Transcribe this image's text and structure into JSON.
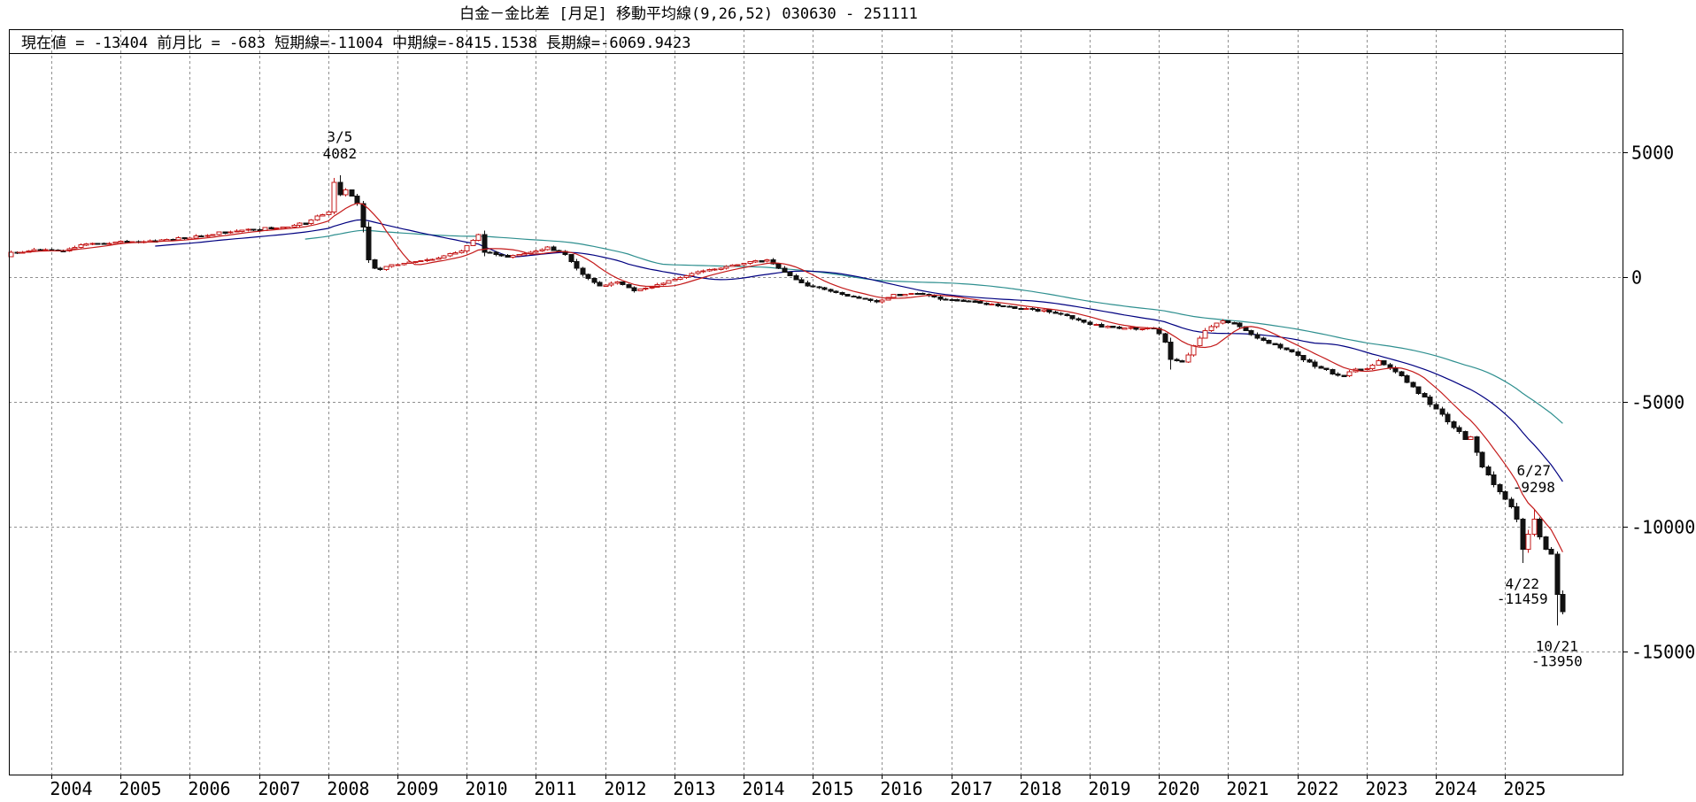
{
  "title": "白金－金比差 [月足]  移動平均線(9,26,52)  030630 - 251111",
  "info_bar": {
    "items": [
      {
        "label": "現在値",
        "sep": " = ",
        "value": "-13404"
      },
      {
        "label": "前月比",
        "sep": " = ",
        "value": "-683"
      },
      {
        "label": "短期線",
        "sep": "=",
        "value": "-11004"
      },
      {
        "label": "中期線",
        "sep": "=",
        "value": "-8415.1538"
      },
      {
        "label": "長期線",
        "sep": "=",
        "value": "-6069.9423"
      }
    ],
    "gap": "    "
  },
  "chart_data": {
    "type": "candlestick",
    "instrument": "白金－金比差",
    "timeframe": "月足",
    "period_shown": "030630 - 251111",
    "start_month": "2003-06",
    "end_month": "2025-11",
    "months_total": 270,
    "current_value": -13404,
    "prev_month_change": -683,
    "x_axis": {
      "year_labels": [
        2004,
        2005,
        2006,
        2007,
        2008,
        2009,
        2010,
        2011,
        2012,
        2013,
        2014,
        2015,
        2016,
        2017,
        2018,
        2019,
        2020,
        2021,
        2022,
        2023,
        2024,
        2025
      ]
    },
    "y_axis": {
      "tick_values": [
        5000,
        0,
        -5000,
        -10000,
        -15000
      ],
      "tick_labels": [
        "5000",
        "0",
        "-5000",
        "-10000",
        "-15000"
      ],
      "approx_range": [
        -19900,
        9900
      ],
      "grid": "dashed"
    },
    "moving_averages": [
      {
        "name": "短期線",
        "period": 9,
        "color": "#c41a1a",
        "last_value": -11004
      },
      {
        "name": "中期線",
        "period": 26,
        "color": "#000080",
        "last_value": -8415.1538
      },
      {
        "name": "長期線",
        "period": 52,
        "color": "#2e8f8f",
        "last_value": -6069.9423
      }
    ],
    "candle_up_color": "#c41a1a",
    "candle_up_fill": "#ffffff",
    "candle_down_color": "#111111",
    "grid_color": "#909090",
    "close_anchors": [
      [
        0,
        1000
      ],
      [
        3,
        1050
      ],
      [
        6,
        1100
      ],
      [
        9,
        1050
      ],
      [
        12,
        1300
      ],
      [
        15,
        1350
      ],
      [
        18,
        1400
      ],
      [
        21,
        1420
      ],
      [
        24,
        1450
      ],
      [
        27,
        1500
      ],
      [
        30,
        1550
      ],
      [
        33,
        1650
      ],
      [
        36,
        1800
      ],
      [
        39,
        1850
      ],
      [
        42,
        1900
      ],
      [
        45,
        1950
      ],
      [
        48,
        2000
      ],
      [
        51,
        2150
      ],
      [
        54,
        2500
      ],
      [
        55,
        2600
      ],
      [
        56,
        3800
      ],
      [
        57,
        3300
      ],
      [
        58,
        3500
      ],
      [
        59,
        3250
      ],
      [
        60,
        2950
      ],
      [
        61,
        2000
      ],
      [
        62,
        700
      ],
      [
        63,
        350
      ],
      [
        64,
        300
      ],
      [
        66,
        500
      ],
      [
        69,
        600
      ],
      [
        72,
        700
      ],
      [
        75,
        850
      ],
      [
        78,
        1050
      ],
      [
        81,
        1700
      ],
      [
        82,
        1000
      ],
      [
        84,
        900
      ],
      [
        86,
        800
      ],
      [
        88,
        900
      ],
      [
        90,
        1000
      ],
      [
        93,
        1200
      ],
      [
        96,
        900
      ],
      [
        99,
        100
      ],
      [
        102,
        -350
      ],
      [
        105,
        -200
      ],
      [
        108,
        -550
      ],
      [
        111,
        -400
      ],
      [
        114,
        -150
      ],
      [
        117,
        50
      ],
      [
        120,
        250
      ],
      [
        123,
        350
      ],
      [
        126,
        500
      ],
      [
        129,
        650
      ],
      [
        131,
        700
      ],
      [
        134,
        200
      ],
      [
        136,
        -100
      ],
      [
        138,
        -350
      ],
      [
        141,
        -500
      ],
      [
        144,
        -700
      ],
      [
        147,
        -850
      ],
      [
        150,
        -1000
      ],
      [
        153,
        -700
      ],
      [
        156,
        -650
      ],
      [
        159,
        -750
      ],
      [
        162,
        -900
      ],
      [
        165,
        -950
      ],
      [
        168,
        -1050
      ],
      [
        171,
        -1150
      ],
      [
        174,
        -1250
      ],
      [
        177,
        -1300
      ],
      [
        180,
        -1400
      ],
      [
        183,
        -1550
      ],
      [
        186,
        -1800
      ],
      [
        189,
        -2000
      ],
      [
        192,
        -2050
      ],
      [
        195,
        -2100
      ],
      [
        198,
        -2050
      ],
      [
        200,
        -2600
      ],
      [
        201,
        -3300
      ],
      [
        203,
        -3400
      ],
      [
        205,
        -2750
      ],
      [
        207,
        -2150
      ],
      [
        210,
        -1750
      ],
      [
        212,
        -1850
      ],
      [
        214,
        -2150
      ],
      [
        216,
        -2450
      ],
      [
        219,
        -2700
      ],
      [
        222,
        -3000
      ],
      [
        225,
        -3400
      ],
      [
        228,
        -3700
      ],
      [
        231,
        -3950
      ],
      [
        234,
        -3700
      ],
      [
        237,
        -3350
      ],
      [
        240,
        -3800
      ],
      [
        243,
        -4400
      ],
      [
        246,
        -5100
      ],
      [
        249,
        -5800
      ],
      [
        252,
        -6500
      ],
      [
        253,
        -6400
      ],
      [
        255,
        -7600
      ],
      [
        258,
        -8600
      ],
      [
        260,
        -9200
      ],
      [
        261,
        -9700
      ],
      [
        262,
        -10900
      ],
      [
        263,
        -10300
      ],
      [
        264,
        -9700
      ],
      [
        265,
        -10400
      ],
      [
        266,
        -10900
      ],
      [
        267,
        -11100
      ],
      [
        268,
        -12721
      ],
      [
        269,
        -13404
      ]
    ],
    "wick_overrides": {
      "56": {
        "high": 3980
      },
      "57": {
        "high": 4082
      },
      "201": {
        "low": -3700
      },
      "262": {
        "low": -11459
      },
      "264": {
        "high": -9298
      },
      "268": {
        "low": -13950
      }
    },
    "annotations": [
      {
        "month_index": 57,
        "value": 4082,
        "position": "above",
        "date_label": "3/5",
        "value_label": "4082"
      },
      {
        "month_index": 264,
        "value": -9298,
        "position": "above",
        "date_label": "6/27",
        "value_label": "-9298"
      },
      {
        "month_index": 262,
        "value": -11459,
        "position": "below",
        "date_label": "4/22",
        "value_label": "-11459"
      },
      {
        "month_index": 268,
        "value": -13950,
        "position": "below",
        "date_label": "10/21",
        "value_label": "-13950"
      }
    ]
  }
}
